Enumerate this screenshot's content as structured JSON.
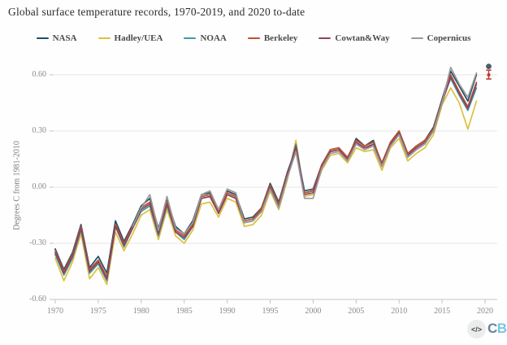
{
  "title": "Global surface temperature records, 1970-2019, and 2020 to-date",
  "chart_data": {
    "type": "line",
    "title": "Global surface temperature records, 1970-2019, and 2020 to-date",
    "ylabel": "Degrees C from 1981-2010",
    "xlabel": "",
    "grid": true,
    "legend_position": "top",
    "ylim": [
      -0.6,
      0.7
    ],
    "xlim": [
      1970,
      2021
    ],
    "y_ticks": [
      "0.60",
      "0.30",
      "0.00",
      "-0.30",
      "-0.60"
    ],
    "y_tick_values": [
      0.6,
      0.3,
      0.0,
      -0.3,
      -0.6
    ],
    "x_ticks": [
      "1970",
      "1975",
      "1980",
      "1985",
      "1990",
      "1995",
      "2000",
      "2005",
      "2010",
      "2015",
      "2020"
    ],
    "x_tick_values": [
      1970,
      1975,
      1980,
      1985,
      1990,
      1995,
      2000,
      2005,
      2010,
      2015,
      2020
    ],
    "years": [
      1970,
      1971,
      1972,
      1973,
      1974,
      1975,
      1976,
      1977,
      1978,
      1979,
      1980,
      1981,
      1982,
      1983,
      1984,
      1985,
      1986,
      1987,
      1988,
      1989,
      1990,
      1991,
      1992,
      1993,
      1994,
      1995,
      1996,
      1997,
      1998,
      1999,
      2000,
      2001,
      2002,
      2003,
      2004,
      2005,
      2006,
      2007,
      2008,
      2009,
      2010,
      2011,
      2012,
      2013,
      2014,
      2015,
      2016,
      2017,
      2018,
      2019
    ],
    "series": [
      {
        "name": "NASA",
        "color": "#1e4f63",
        "values": [
          -0.33,
          -0.44,
          -0.35,
          -0.2,
          -0.43,
          -0.37,
          -0.46,
          -0.18,
          -0.29,
          -0.2,
          -0.1,
          -0.06,
          -0.22,
          -0.07,
          -0.21,
          -0.25,
          -0.18,
          -0.04,
          -0.03,
          -0.13,
          -0.02,
          -0.04,
          -0.17,
          -0.16,
          -0.11,
          0.02,
          -0.08,
          0.08,
          0.21,
          -0.02,
          -0.01,
          0.12,
          0.2,
          0.21,
          0.15,
          0.26,
          0.22,
          0.25,
          0.12,
          0.24,
          0.3,
          0.18,
          0.22,
          0.25,
          0.32,
          0.47,
          0.62,
          0.54,
          0.46,
          0.6
        ]
      },
      {
        "name": "Hadley/UEA",
        "color": "#ddc13f",
        "values": [
          -0.38,
          -0.5,
          -0.4,
          -0.25,
          -0.49,
          -0.43,
          -0.52,
          -0.24,
          -0.34,
          -0.25,
          -0.15,
          -0.12,
          -0.28,
          -0.12,
          -0.26,
          -0.3,
          -0.23,
          -0.09,
          -0.08,
          -0.16,
          -0.06,
          -0.08,
          -0.21,
          -0.2,
          -0.15,
          -0.02,
          -0.12,
          0.04,
          0.25,
          -0.05,
          -0.04,
          0.09,
          0.17,
          0.18,
          0.13,
          0.21,
          0.19,
          0.2,
          0.09,
          0.21,
          0.26,
          0.14,
          0.18,
          0.21,
          0.28,
          0.44,
          0.53,
          0.45,
          0.31,
          0.46
        ]
      },
      {
        "name": "NOAA",
        "color": "#3f98a8",
        "values": [
          -0.36,
          -0.47,
          -0.38,
          -0.23,
          -0.46,
          -0.41,
          -0.5,
          -0.21,
          -0.32,
          -0.22,
          -0.13,
          -0.1,
          -0.26,
          -0.1,
          -0.24,
          -0.28,
          -0.21,
          -0.06,
          -0.05,
          -0.14,
          -0.04,
          -0.06,
          -0.19,
          -0.18,
          -0.13,
          0.0,
          -0.1,
          0.06,
          0.23,
          -0.03,
          -0.02,
          0.11,
          0.19,
          0.2,
          0.15,
          0.23,
          0.21,
          0.22,
          0.11,
          0.23,
          0.28,
          0.16,
          0.2,
          0.23,
          0.3,
          0.46,
          0.58,
          0.49,
          0.41,
          0.53
        ]
      },
      {
        "name": "Berkeley",
        "color": "#c1502e",
        "values": [
          -0.34,
          -0.45,
          -0.36,
          -0.21,
          -0.44,
          -0.39,
          -0.48,
          -0.2,
          -0.3,
          -0.21,
          -0.11,
          -0.08,
          -0.24,
          -0.08,
          -0.23,
          -0.26,
          -0.2,
          -0.05,
          -0.04,
          -0.13,
          -0.03,
          -0.05,
          -0.18,
          -0.17,
          -0.11,
          0.01,
          -0.09,
          0.07,
          0.2,
          -0.03,
          -0.02,
          0.12,
          0.2,
          0.21,
          0.16,
          0.25,
          0.22,
          0.24,
          0.13,
          0.24,
          0.3,
          0.18,
          0.22,
          0.25,
          0.31,
          0.46,
          0.6,
          0.51,
          0.43,
          0.56
        ]
      },
      {
        "name": "Cowtan&Way",
        "color": "#8e4460",
        "values": [
          -0.35,
          -0.46,
          -0.37,
          -0.22,
          -0.45,
          -0.4,
          -0.49,
          -0.21,
          -0.31,
          -0.22,
          -0.12,
          -0.09,
          -0.25,
          -0.09,
          -0.24,
          -0.27,
          -0.21,
          -0.06,
          -0.05,
          -0.14,
          -0.04,
          -0.06,
          -0.19,
          -0.18,
          -0.12,
          0.0,
          -0.1,
          0.06,
          0.22,
          -0.04,
          -0.03,
          0.11,
          0.19,
          0.2,
          0.15,
          0.24,
          0.21,
          0.23,
          0.12,
          0.23,
          0.29,
          0.17,
          0.21,
          0.24,
          0.3,
          0.45,
          0.59,
          0.5,
          0.42,
          0.55
        ]
      },
      {
        "name": "Copernicus",
        "color": "#9a9a9a",
        "values": [
          null,
          null,
          null,
          null,
          null,
          null,
          null,
          null,
          null,
          -0.21,
          -0.11,
          -0.04,
          -0.23,
          -0.05,
          -0.22,
          -0.25,
          -0.19,
          -0.04,
          -0.02,
          -0.12,
          -0.01,
          -0.03,
          -0.19,
          -0.18,
          -0.13,
          -0.01,
          -0.11,
          0.05,
          0.19,
          -0.06,
          -0.06,
          0.1,
          0.18,
          0.19,
          0.14,
          0.23,
          0.2,
          0.22,
          0.11,
          0.22,
          0.28,
          0.16,
          0.2,
          0.23,
          0.3,
          0.45,
          0.64,
          0.55,
          0.48,
          0.61
        ]
      }
    ],
    "markers_2020": [
      {
        "name": "2020-to-date-point",
        "shape": "circle",
        "color": "#4d5d6b",
        "value": 0.645
      },
      {
        "name": "2020-to-date-estimate",
        "shape": "errorbar",
        "color": "#c0392b",
        "value": 0.6,
        "high": 0.625,
        "low": 0.578
      }
    ]
  },
  "footer": {
    "export_label": "</>",
    "logo_c": "C",
    "logo_b": "B"
  }
}
